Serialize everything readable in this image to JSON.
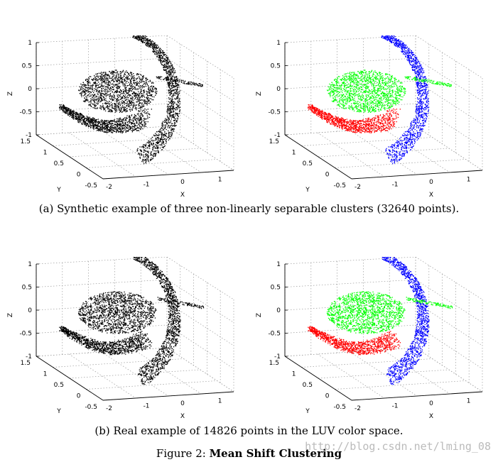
{
  "figure": {
    "label": "Figure 2:",
    "title": "Mean Shift Clustering",
    "watermark": "http://blog.csdn.net/lming_08"
  },
  "colors": {
    "cluster_1": "#ff0000",
    "cluster_2": "#00ff00",
    "cluster_3": "#0000ff",
    "mono": "#000000"
  },
  "rows": [
    {
      "caption": "(a) Synthetic example of three non-linearly separable clusters (32640 points).",
      "panels": [
        {
          "name": "unclustered",
          "colored": false
        },
        {
          "name": "clustered",
          "colored": true
        }
      ]
    },
    {
      "caption": "(b) Real example of 14826 points in the LUV color space.",
      "panels": [
        {
          "name": "unclustered",
          "colored": false
        },
        {
          "name": "clustered",
          "colored": true
        }
      ]
    }
  ],
  "axes": {
    "z_label": "Z",
    "y_label": "Y",
    "x_label": "X",
    "z_ticks": [
      "1",
      "0.5",
      "0",
      "-0.5",
      "-1"
    ],
    "y_ticks": [
      "1.5",
      "1",
      "0.5",
      "0",
      "-0.5"
    ],
    "x_ticks": [
      "-2",
      "-1",
      "0",
      "1"
    ],
    "x_range": [
      -2,
      1.5
    ],
    "y_range": [
      -0.5,
      1.5
    ],
    "z_range": [
      -1,
      1
    ]
  }
}
